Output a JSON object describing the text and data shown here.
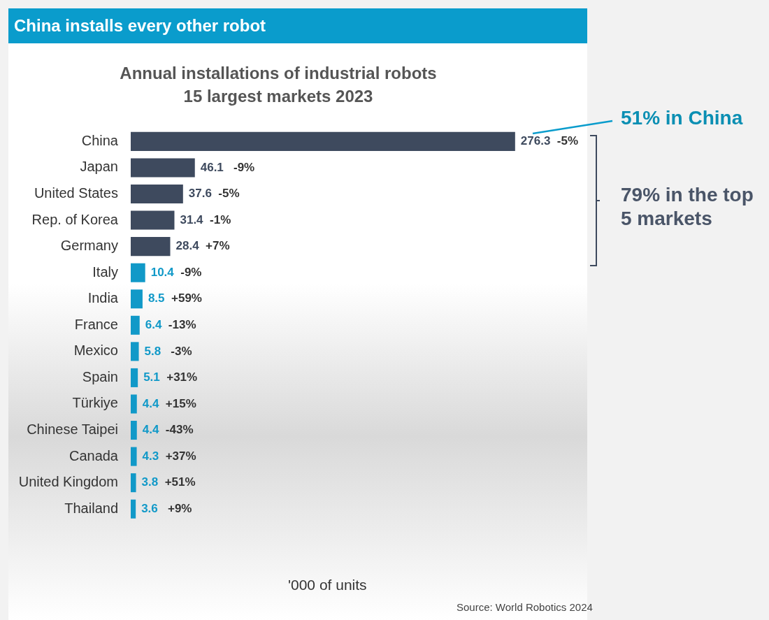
{
  "chart_data": {
    "type": "bar",
    "orientation": "horizontal",
    "title": "Annual installations of industrial robots",
    "subtitle": "15 largest markets 2023",
    "xlabel": "'000 of units",
    "categories": [
      "China",
      "Japan",
      "United States",
      "Rep. of Korea",
      "Germany",
      "Italy",
      "India",
      "France",
      "Mexico",
      "Spain",
      "Türkiye",
      "Chinese Taipei",
      "Canada",
      "United Kingdom",
      "Thailand"
    ],
    "values": [
      276.3,
      46.1,
      37.6,
      31.4,
      28.4,
      10.4,
      8.5,
      6.4,
      5.8,
      5.1,
      4.4,
      4.4,
      4.3,
      3.8,
      3.6
    ],
    "colors": [
      "#3e4a5e",
      "#3e4a5e",
      "#3e4a5e",
      "#3e4a5e",
      "#3e4a5e",
      "#1199c8",
      "#1199c8",
      "#1199c8",
      "#1199c8",
      "#1199c8",
      "#1199c8",
      "#1199c8",
      "#1199c8",
      "#1199c8",
      "#1199c8"
    ],
    "value_labels": [
      "276.3  -5%",
      "46.1   -9%",
      "37.6  -5%",
      "31.4  -1%",
      "28.4  +7%",
      "10.4  -9%",
      "8.5  +59%",
      "6.4  -13%",
      "5.8   -3%",
      "5.1  +31%",
      "4.4  +15%",
      "4.4  -43%",
      "4.3  +37%",
      "3.8  +51%",
      "3.6   +9%"
    ],
    "legend": false,
    "annotations": [
      "China installs every other robot",
      "51% in China",
      "79% in the top 5 markets",
      "Source: World Robotics 2024"
    ]
  }
}
